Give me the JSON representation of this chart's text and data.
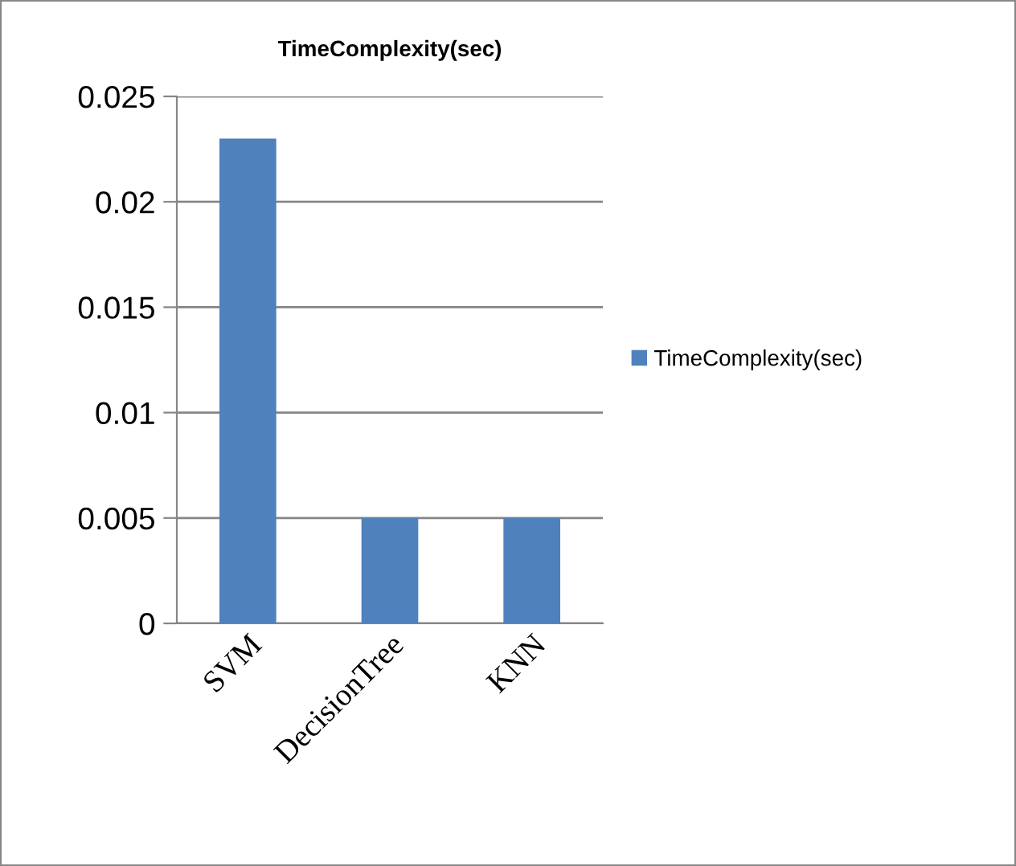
{
  "chart_data": {
    "type": "bar",
    "title": "TimeComplexity(sec)",
    "categories": [
      "SVM",
      "DecisionTree",
      "KNN"
    ],
    "series": [
      {
        "name": "TimeComplexity(sec)",
        "color": "#4f81bd",
        "values": [
          0.023,
          0.005,
          0.005
        ]
      }
    ],
    "ylim": [
      0,
      0.025
    ],
    "yticks": [
      {
        "value": 0,
        "label": "0"
      },
      0.005,
      0.01,
      0.015,
      0.02,
      0.025
    ],
    "grid": "y",
    "legend": "right"
  }
}
